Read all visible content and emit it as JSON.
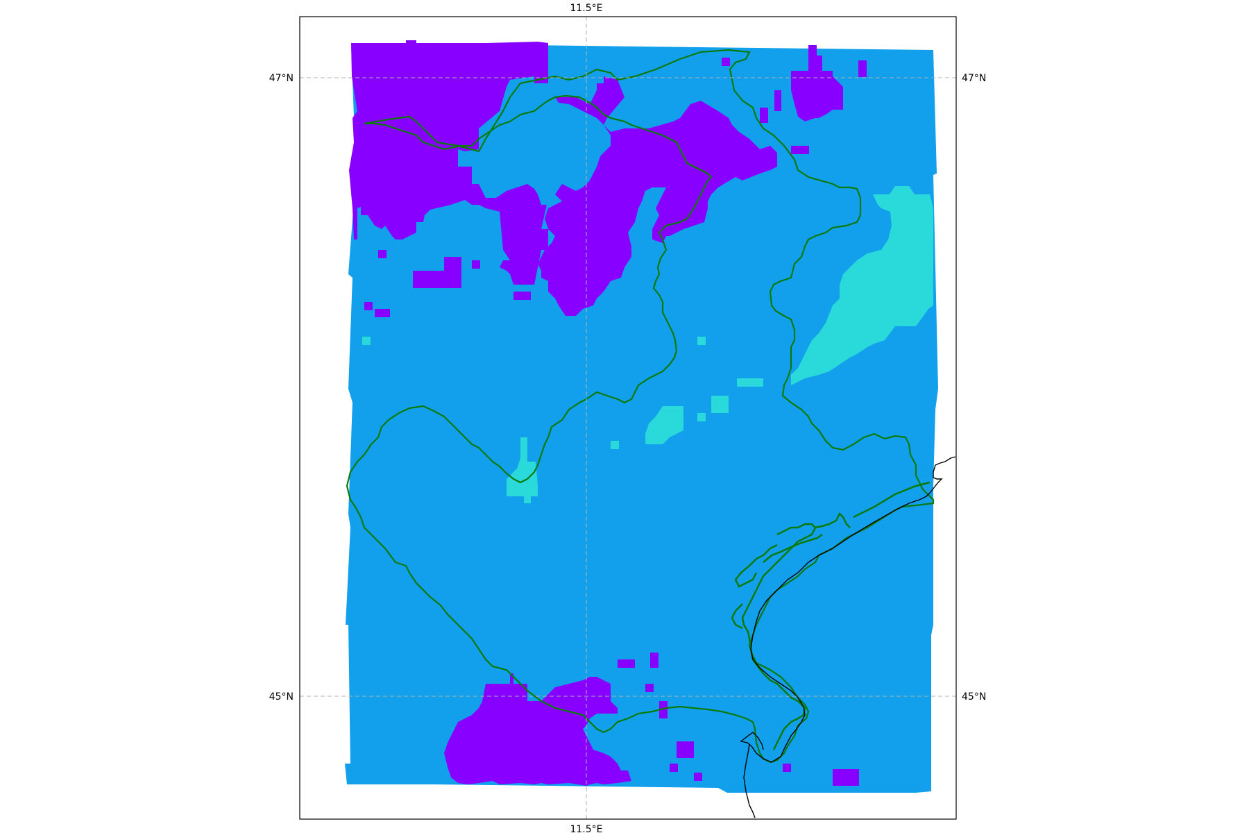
{
  "map": {
    "gridlines": {
      "lon": [
        {
          "value": 11.5,
          "label": "11.5°E"
        }
      ],
      "lat": [
        {
          "value": 47,
          "label": "47°N"
        },
        {
          "value": 45,
          "label": "45°N"
        }
      ]
    },
    "category_colors": {
      "purple": "#8800ff",
      "blue": "#12a0ec",
      "cyan": "#2adada"
    },
    "border_color": "#0a7a0a",
    "coastline_color": "#000000"
  }
}
